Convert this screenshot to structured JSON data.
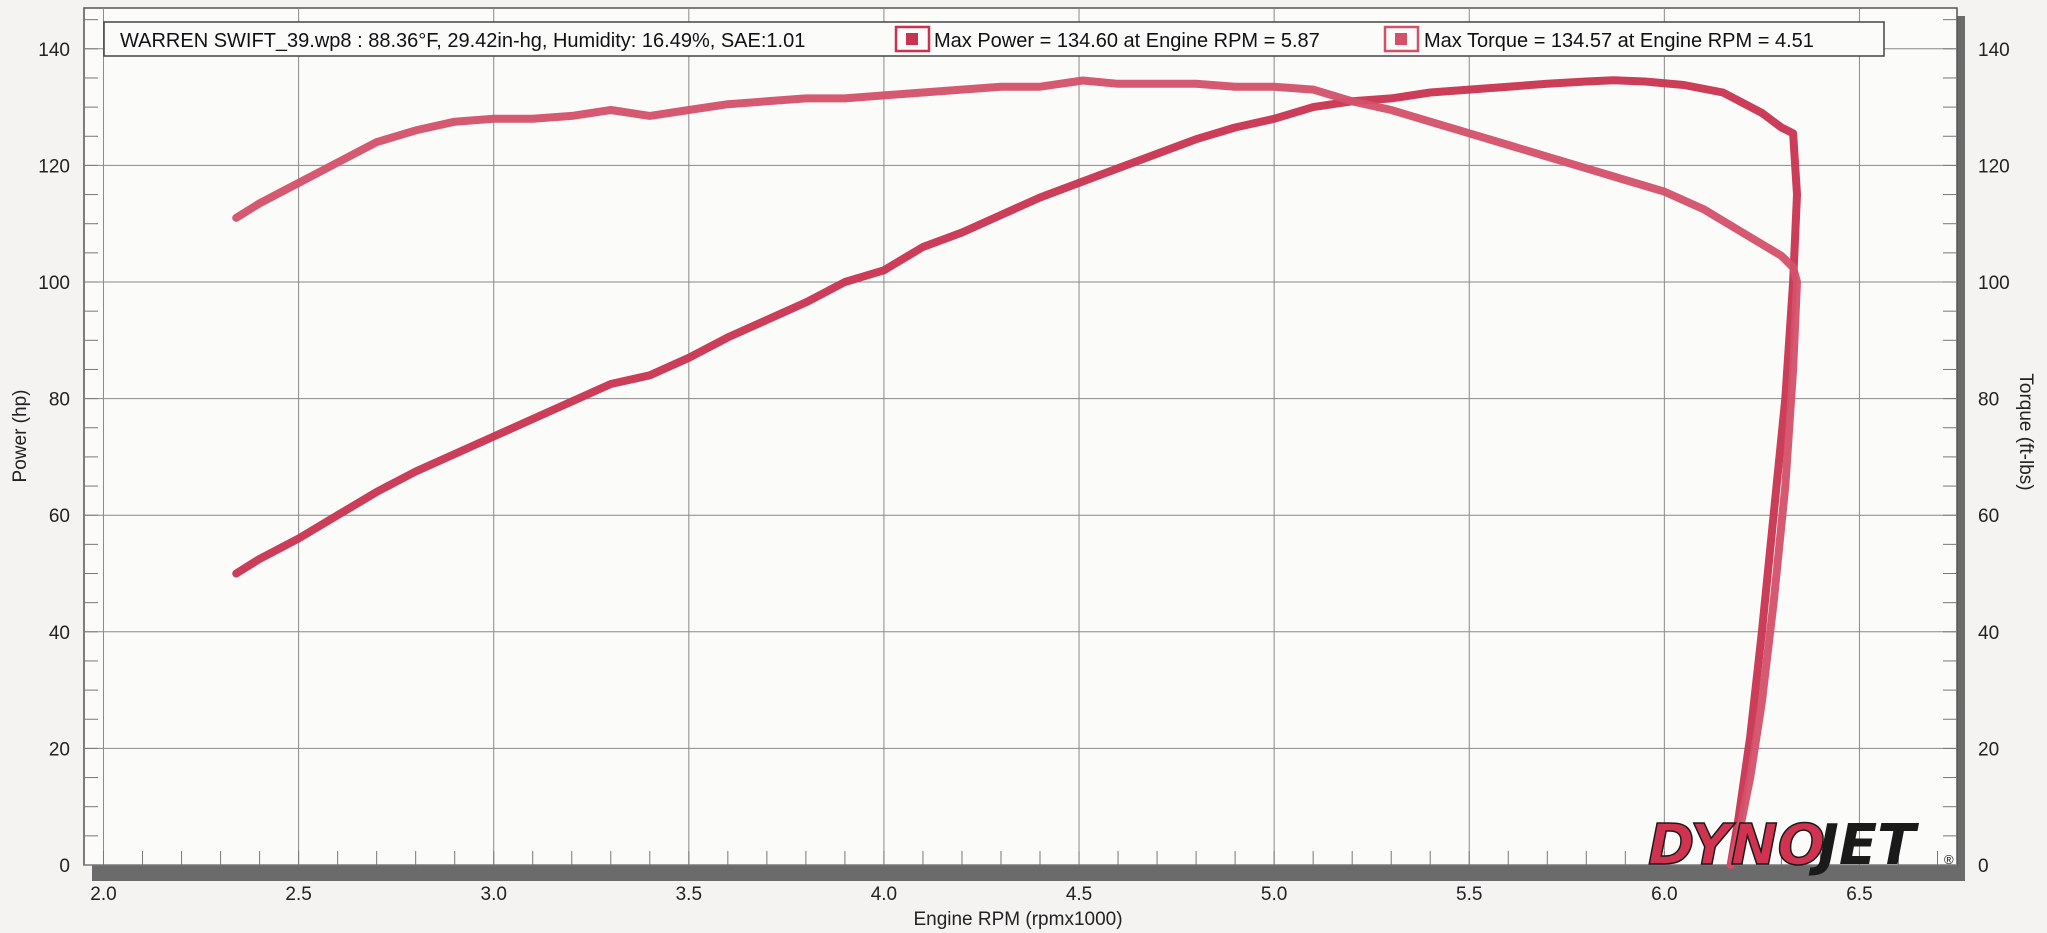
{
  "chart_data": {
    "type": "line",
    "xlabel": "Engine RPM (rpmx1000)",
    "ylabel": "Power (hp)",
    "y2label": "Torque (ft-lbs)",
    "xlim": [
      1.95,
      6.75
    ],
    "ylim": [
      0,
      147
    ],
    "xticks": [
      2.0,
      2.5,
      3.0,
      3.5,
      4.0,
      4.5,
      5.0,
      5.5,
      6.0,
      6.5
    ],
    "xtick_labels": [
      "2.0",
      "2.5",
      "3.0",
      "3.5",
      "4.0",
      "4.5",
      "5.0",
      "5.5",
      "6.0",
      "6.5"
    ],
    "yticks": [
      0,
      20,
      40,
      60,
      80,
      100,
      120,
      140
    ],
    "ytick_labels": [
      "0",
      "20",
      "40",
      "60",
      "80",
      "100",
      "120",
      "140"
    ],
    "grid": true,
    "legend": {
      "run_info": "WARREN SWIFT_39.wp8 : 88.36°F, 29.42in-hg, Humidity: 16.49%, SAE:1.01",
      "power_label": "Max Power = 134.60 at Engine RPM = 5.87",
      "torque_label": "Max Torque = 134.57 at Engine RPM = 4.51",
      "placement": "top"
    },
    "series": [
      {
        "axis": "left",
        "color": "#c8334f",
        "x": [
          2.34,
          2.4,
          2.5,
          2.6,
          2.7,
          2.8,
          2.9,
          3.0,
          3.1,
          3.2,
          3.3,
          3.4,
          3.5,
          3.6,
          3.7,
          3.8,
          3.9,
          4.0,
          4.1,
          4.2,
          4.3,
          4.4,
          4.5,
          4.6,
          4.7,
          4.8,
          4.9,
          5.0,
          5.1,
          5.2,
          5.3,
          5.4,
          5.5,
          5.6,
          5.7,
          5.8,
          5.87,
          5.95,
          6.05,
          6.15,
          6.25,
          6.3,
          6.33,
          6.34,
          6.33,
          6.31,
          6.28,
          6.25,
          6.22,
          6.19,
          6.17
        ],
        "values": [
          50,
          52.5,
          56,
          60,
          64,
          67.5,
          70.5,
          73.5,
          76.5,
          79.5,
          82.5,
          84,
          87,
          90.5,
          93.5,
          96.5,
          100,
          102,
          106,
          108.5,
          111.5,
          114.5,
          117,
          119.5,
          122,
          124.5,
          126.5,
          128,
          130,
          131,
          131.5,
          132.5,
          133,
          133.5,
          134,
          134.4,
          134.6,
          134.4,
          133.8,
          132.5,
          129,
          126.5,
          125.5,
          115,
          100,
          80,
          60,
          40,
          22,
          8,
          0
        ]
      },
      {
        "axis": "right",
        "color": "#d4506a",
        "x": [
          2.34,
          2.4,
          2.5,
          2.6,
          2.7,
          2.8,
          2.9,
          3.0,
          3.1,
          3.2,
          3.3,
          3.4,
          3.5,
          3.6,
          3.7,
          3.8,
          3.9,
          4.0,
          4.1,
          4.2,
          4.3,
          4.4,
          4.51,
          4.6,
          4.7,
          4.8,
          4.9,
          5.0,
          5.1,
          5.2,
          5.3,
          5.4,
          5.5,
          5.6,
          5.7,
          5.8,
          5.9,
          6.0,
          6.1,
          6.2,
          6.3,
          6.33,
          6.34,
          6.33,
          6.31,
          6.28,
          6.25,
          6.22,
          6.19,
          6.17
        ],
        "values": [
          111,
          113.5,
          117,
          120.5,
          124,
          126,
          127.5,
          128,
          128,
          128.5,
          129.5,
          128.5,
          129.5,
          130.5,
          131,
          131.5,
          131.5,
          132,
          132.5,
          133,
          133.5,
          133.5,
          134.57,
          134,
          134,
          134,
          133.5,
          133.5,
          133,
          131,
          129.5,
          127.5,
          125.5,
          123.5,
          121.5,
          119.5,
          117.5,
          115.5,
          112.5,
          108.5,
          104.5,
          102.5,
          100,
          85,
          65,
          45,
          28,
          15,
          5,
          0
        ]
      }
    ]
  },
  "logo": {
    "text_left": "DYNO",
    "text_right": "JET",
    "mark": "®"
  }
}
